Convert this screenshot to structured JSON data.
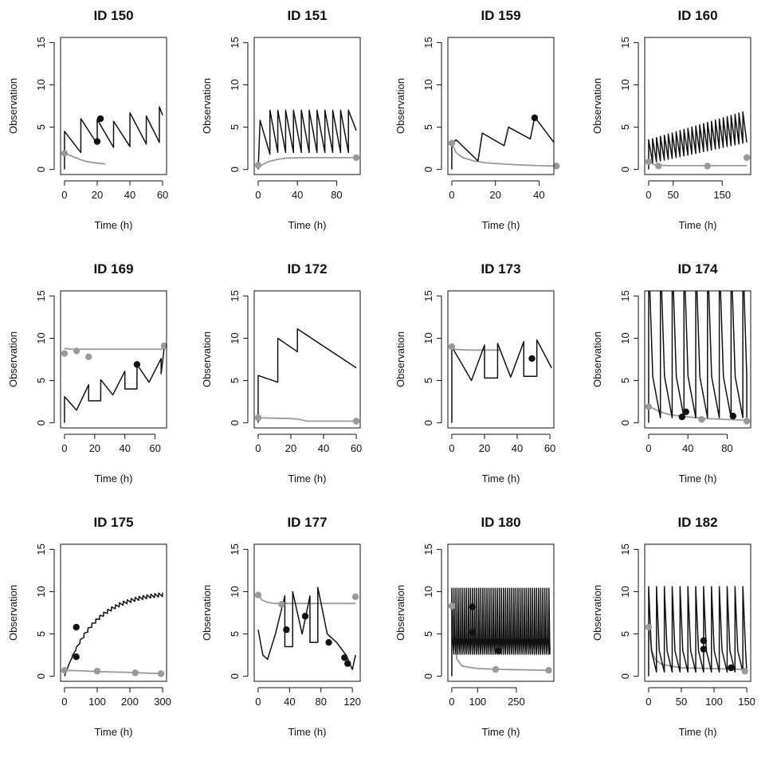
{
  "chart_data": [
    {
      "type": "line",
      "title": "ID 150",
      "xlabel": "Time (h)",
      "ylabel": "Observation",
      "xlim": [
        0,
        60
      ],
      "ylim": [
        0,
        15
      ],
      "xticks": [
        0,
        20,
        40,
        60
      ],
      "yticks": [
        0,
        5,
        10,
        15
      ],
      "series": [
        {
          "style": "predicted",
          "color": "#111111",
          "x": [
            0,
            0.01,
            10,
            10.01,
            20,
            20.01,
            30,
            30.01,
            40,
            40.01,
            50,
            50.01,
            58,
            58.01,
            60
          ],
          "y": [
            0,
            4.5,
            2,
            6,
            3,
            5.9,
            2.6,
            5.7,
            2.7,
            6.7,
            3,
            6.3,
            3.2,
            7.4,
            6.4
          ]
        },
        {
          "style": "population",
          "color": "#999999",
          "x": [
            0,
            4,
            8,
            12,
            16,
            20,
            25
          ],
          "y": [
            2,
            1.6,
            1.3,
            1.0,
            0.85,
            0.75,
            0.65
          ]
        }
      ],
      "points": [
        {
          "x": 0,
          "y": 1.9,
          "color": "#999999"
        },
        {
          "x": 20,
          "y": 3.3,
          "color": "#111111"
        },
        {
          "x": 22,
          "y": 6.0,
          "color": "#111111"
        }
      ]
    },
    {
      "type": "line",
      "title": "ID 151",
      "xlabel": "Time (h)",
      "ylabel": "Observation",
      "xlim": [
        0,
        100
      ],
      "ylim": [
        0,
        15
      ],
      "xticks": [
        0,
        40,
        80
      ],
      "yticks": [
        0,
        5,
        10,
        15
      ],
      "series": [
        {
          "style": "predicted",
          "color": "#111111",
          "x": [
            0,
            2,
            2.01,
            12,
            12.01,
            20,
            20.01,
            28,
            28.01,
            36,
            36.01,
            44,
            44.01,
            52,
            52.01,
            60,
            60.01,
            68,
            68.01,
            76,
            76.01,
            84,
            84.01,
            92,
            92.01,
            100
          ],
          "y": [
            0,
            5.8,
            5.8,
            1.8,
            7,
            2,
            7,
            2,
            7,
            2,
            7,
            2,
            7,
            2,
            7,
            2,
            7,
            2,
            7,
            2,
            7,
            2,
            7,
            2,
            7,
            4.6
          ]
        },
        {
          "style": "population",
          "color": "#999999",
          "x": [
            0,
            5,
            10,
            20,
            30,
            50,
            70,
            100
          ],
          "y": [
            0.3,
            0.6,
            0.9,
            1.2,
            1.35,
            1.4,
            1.4,
            1.4
          ]
        }
      ],
      "points": [
        {
          "x": 0,
          "y": 0.5,
          "color": "#999999"
        },
        {
          "x": 100,
          "y": 1.4,
          "color": "#999999"
        }
      ]
    },
    {
      "type": "line",
      "title": "ID 159",
      "xlabel": "Time (h)",
      "ylabel": "Observation",
      "xlim": [
        0,
        45
      ],
      "ylim": [
        0,
        15
      ],
      "xticks": [
        0,
        20,
        40
      ],
      "yticks": [
        0,
        5,
        10,
        15
      ],
      "series": [
        {
          "style": "predicted",
          "color": "#111111",
          "x": [
            0,
            0.01,
            2,
            12,
            12.01,
            14,
            24,
            24.01,
            26,
            36,
            36.01,
            38,
            48
          ],
          "y": [
            0,
            3,
            3.5,
            1,
            1,
            4.3,
            2.8,
            2.8,
            5,
            3.6,
            3.6,
            6.2,
            2.8
          ]
        },
        {
          "style": "population",
          "color": "#999999",
          "x": [
            0,
            2,
            5,
            10,
            15,
            20,
            30,
            40,
            48
          ],
          "y": [
            3.1,
            2,
            1.4,
            1,
            0.8,
            0.7,
            0.55,
            0.45,
            0.4
          ]
        }
      ],
      "points": [
        {
          "x": 0,
          "y": 3.1,
          "color": "#999999"
        },
        {
          "x": 38,
          "y": 6.1,
          "color": "#111111"
        },
        {
          "x": 48,
          "y": 0.4,
          "color": "#999999"
        }
      ]
    },
    {
      "type": "line",
      "title": "ID 160",
      "xlabel": "Time (h)",
      "ylabel": "Observation",
      "xlim": [
        0,
        200
      ],
      "ylim": [
        0,
        15
      ],
      "xticks": [
        0,
        50,
        150
      ],
      "yticks": [
        0,
        5,
        10,
        15
      ],
      "sawtooth": {
        "start": 0,
        "end": 200,
        "period": 8,
        "peak_start": 3.5,
        "peak_end": 6.8,
        "trough_start": 0.8,
        "trough_end": 3.2,
        "color": "#111111"
      },
      "series": [
        {
          "style": "population",
          "color": "#999999",
          "x": [
            0,
            10,
            20,
            40,
            80,
            120,
            200
          ],
          "y": [
            1,
            0.6,
            0.5,
            0.45,
            0.45,
            0.45,
            0.45
          ]
        }
      ],
      "points": [
        {
          "x": 0,
          "y": 0.9,
          "color": "#999999"
        },
        {
          "x": 20,
          "y": 0.4,
          "color": "#999999"
        },
        {
          "x": 120,
          "y": 0.4,
          "color": "#999999"
        },
        {
          "x": 200,
          "y": 1.4,
          "color": "#999999"
        }
      ]
    },
    {
      "type": "line",
      "title": "ID 169",
      "xlabel": "Time (h)",
      "ylabel": "Observation",
      "xlim": [
        0,
        65
      ],
      "ylim": [
        0,
        15
      ],
      "xticks": [
        0,
        20,
        40,
        60
      ],
      "yticks": [
        0,
        5,
        10,
        15
      ],
      "series": [
        {
          "style": "predicted",
          "color": "#111111",
          "x": [
            0,
            0.01,
            8,
            8.01,
            16,
            16.01,
            24,
            24.01,
            32,
            32.01,
            40,
            40.01,
            48,
            48.01,
            56,
            56.01,
            64,
            64.01,
            66
          ],
          "y": [
            0,
            3.1,
            1.5,
            1.5,
            4.5,
            2.6,
            2.6,
            5.1,
            3.3,
            3.3,
            6.1,
            4,
            4,
            6.9,
            4.8,
            4.8,
            7.6,
            5.8,
            8.8
          ]
        },
        {
          "style": "population",
          "color": "#999999",
          "x": [
            0,
            5,
            10,
            20,
            40,
            60,
            66
          ],
          "y": [
            8.8,
            8.7,
            8.7,
            8.7,
            8.7,
            8.7,
            8.7
          ]
        }
      ],
      "points": [
        {
          "x": 0,
          "y": 8.2,
          "color": "#999999"
        },
        {
          "x": 8,
          "y": 8.5,
          "color": "#999999"
        },
        {
          "x": 16,
          "y": 7.8,
          "color": "#999999"
        },
        {
          "x": 48,
          "y": 6.9,
          "color": "#111111"
        },
        {
          "x": 66,
          "y": 9.1,
          "color": "#999999"
        }
      ]
    },
    {
      "type": "line",
      "title": "ID 172",
      "xlabel": "Time (h)",
      "ylabel": "Observation",
      "xlim": [
        0,
        60
      ],
      "ylim": [
        0,
        15
      ],
      "xticks": [
        0,
        20,
        40,
        60
      ],
      "yticks": [
        0,
        5,
        10,
        15
      ],
      "series": [
        {
          "style": "predicted",
          "color": "#111111",
          "x": [
            0,
            0.01,
            12,
            12.01,
            24,
            24.01,
            60
          ],
          "y": [
            0,
            5.6,
            4.8,
            10,
            8.4,
            11.1,
            6.5
          ]
        },
        {
          "style": "population",
          "color": "#999999",
          "x": [
            0,
            10,
            20,
            24,
            30,
            40,
            60
          ],
          "y": [
            0.6,
            0.55,
            0.5,
            0.45,
            0.2,
            0.2,
            0.2
          ]
        }
      ],
      "points": [
        {
          "x": 0,
          "y": 0.6,
          "color": "#999999"
        },
        {
          "x": 60,
          "y": 0.2,
          "color": "#999999"
        }
      ]
    },
    {
      "type": "line",
      "title": "ID 173",
      "xlabel": "Time (h)",
      "ylabel": "Observation",
      "xlim": [
        0,
        60
      ],
      "ylim": [
        0,
        15
      ],
      "xticks": [
        0,
        20,
        40,
        60
      ],
      "yticks": [
        0,
        5,
        10,
        15
      ],
      "series": [
        {
          "style": "predicted",
          "color": "#111111",
          "x": [
            0,
            0.01,
            12,
            12.01,
            20,
            20.01,
            28,
            28.01,
            36,
            36.01,
            44,
            44.01,
            52,
            52.01,
            61
          ],
          "y": [
            0,
            9,
            5,
            5,
            9.2,
            5.3,
            5.3,
            9.4,
            5.4,
            5.4,
            9.6,
            5.5,
            5.5,
            9.8,
            6.5
          ]
        },
        {
          "style": "population",
          "color": "#999999",
          "x": [
            0,
            10,
            20,
            30
          ],
          "y": [
            8.7,
            8.6,
            8.6,
            8.6
          ]
        }
      ],
      "points": [
        {
          "x": 0,
          "y": 9,
          "color": "#999999"
        },
        {
          "x": 49,
          "y": 7.6,
          "color": "#111111"
        }
      ]
    },
    {
      "type": "line",
      "title": "ID 174",
      "xlabel": "Time (h)",
      "ylabel": "Observation",
      "xlim": [
        0,
        100
      ],
      "ylim": [
        0,
        15
      ],
      "xticks": [
        0,
        40,
        80
      ],
      "yticks": [
        0,
        5,
        10,
        15
      ],
      "spikes": {
        "start": 0,
        "end": 100,
        "period": 12,
        "peak": 20,
        "trough": 0.6,
        "color": "#111111"
      },
      "series": [
        {
          "style": "population",
          "color": "#999999",
          "x": [
            0,
            10,
            20,
            40,
            60,
            80,
            100
          ],
          "y": [
            2,
            1.4,
            1,
            0.7,
            0.5,
            0.4,
            0.3
          ]
        }
      ],
      "points": [
        {
          "x": 0,
          "y": 1.9,
          "color": "#999999"
        },
        {
          "x": 34,
          "y": 0.7,
          "color": "#111111"
        },
        {
          "x": 38,
          "y": 1.3,
          "color": "#111111"
        },
        {
          "x": 54,
          "y": 0.4,
          "color": "#999999"
        },
        {
          "x": 86,
          "y": 0.8,
          "color": "#111111"
        },
        {
          "x": 100,
          "y": 0.2,
          "color": "#999999"
        }
      ]
    },
    {
      "type": "line",
      "title": "ID 175",
      "xlabel": "Time (h)",
      "ylabel": "Observation",
      "xlim": [
        0,
        300
      ],
      "ylim": [
        0,
        15
      ],
      "xticks": [
        0,
        100,
        200,
        300
      ],
      "yticks": [
        0,
        5,
        10,
        15
      ],
      "rise": {
        "start": 0,
        "end": 300,
        "plateau": 10,
        "rate": 0.011,
        "period": 12,
        "ripple": 0.5,
        "color": "#111111"
      },
      "series": [
        {
          "style": "population",
          "color": "#999999",
          "x": [
            0,
            50,
            100,
            200,
            300
          ],
          "y": [
            0.7,
            0.65,
            0.55,
            0.45,
            0.3
          ]
        }
      ],
      "points": [
        {
          "x": 0,
          "y": 0.7,
          "color": "#999999"
        },
        {
          "x": 36,
          "y": 5.8,
          "color": "#111111"
        },
        {
          "x": 36,
          "y": 2.3,
          "color": "#111111"
        },
        {
          "x": 100,
          "y": 0.6,
          "color": "#999999"
        },
        {
          "x": 216,
          "y": 0.4,
          "color": "#999999"
        },
        {
          "x": 295,
          "y": 0.3,
          "color": "#999999"
        }
      ]
    },
    {
      "type": "line",
      "title": "ID 177",
      "xlabel": "Time (h)",
      "ylabel": "Observation",
      "xlim": [
        0,
        125
      ],
      "ylim": [
        0,
        15
      ],
      "xticks": [
        0,
        40,
        80,
        120
      ],
      "yticks": [
        0,
        5,
        10,
        15
      ],
      "series": [
        {
          "style": "predicted",
          "color": "#111111",
          "x": [
            0,
            6,
            12,
            12.01,
            22,
            22.01,
            34,
            34.01,
            44,
            44.01,
            56,
            56.01,
            66,
            66.01,
            76,
            76.01,
            88,
            88.01,
            100,
            100.01,
            112,
            112.01,
            120,
            120.01,
            124
          ],
          "y": [
            5.5,
            2.5,
            2,
            2,
            5,
            5,
            9.5,
            3.5,
            3.5,
            10,
            5,
            5,
            9.5,
            4,
            4,
            10.5,
            5,
            5,
            4,
            4,
            2.5,
            2.5,
            0.8,
            0.8,
            2.5
          ]
        },
        {
          "style": "population",
          "color": "#999999",
          "x": [
            0,
            5,
            10,
            20,
            60,
            100,
            124
          ],
          "y": [
            9.6,
            9,
            8.8,
            8.6,
            8.6,
            8.6,
            8.6
          ]
        }
      ],
      "points": [
        {
          "x": 0,
          "y": 9.6,
          "color": "#999999"
        },
        {
          "x": 30,
          "y": 8.5,
          "color": "#999999"
        },
        {
          "x": 36,
          "y": 5.5,
          "color": "#111111"
        },
        {
          "x": 60,
          "y": 7.1,
          "color": "#111111"
        },
        {
          "x": 90,
          "y": 4,
          "color": "#111111"
        },
        {
          "x": 110,
          "y": 2.2,
          "color": "#111111"
        },
        {
          "x": 114,
          "y": 1.5,
          "color": "#111111"
        },
        {
          "x": 124,
          "y": 9.4,
          "color": "#999999"
        }
      ]
    },
    {
      "type": "line",
      "title": "ID 180",
      "xlabel": "Time (h)",
      "ylabel": "Observation",
      "xlim": [
        0,
        380
      ],
      "ylim": [
        0,
        15
      ],
      "xticks": [
        0,
        100,
        250
      ],
      "yticks": [
        0,
        5,
        10,
        15
      ],
      "spikes": {
        "start": 0,
        "end": 380,
        "period": 8,
        "peak": 10.4,
        "trough": 2.6,
        "color": "#111111"
      },
      "series": [
        {
          "style": "population",
          "color": "#999999",
          "x": [
            0,
            10,
            20,
            40,
            100,
            200,
            380
          ],
          "y": [
            8.2,
            5,
            2,
            1.2,
            0.9,
            0.8,
            0.7
          ]
        }
      ],
      "points": [
        {
          "x": 0,
          "y": 8.3,
          "color": "#999999"
        },
        {
          "x": 80,
          "y": 8.2,
          "color": "#111111"
        },
        {
          "x": 80,
          "y": 5.2,
          "color": "#111111"
        },
        {
          "x": 170,
          "y": 0.8,
          "color": "#999999"
        },
        {
          "x": 180,
          "y": 3.0,
          "color": "#111111"
        },
        {
          "x": 375,
          "y": 0.7,
          "color": "#999999"
        }
      ]
    },
    {
      "type": "line",
      "title": "ID 182",
      "xlabel": "Time (h)",
      "ylabel": "Observation",
      "xlim": [
        0,
        150
      ],
      "ylim": [
        0,
        15
      ],
      "xticks": [
        0,
        50,
        100,
        150
      ],
      "yticks": [
        0,
        5,
        10,
        15
      ],
      "spikes": {
        "start": 0,
        "end": 150,
        "period": 12,
        "peak": 10.6,
        "trough": 0.5,
        "color": "#111111"
      },
      "series": [
        {
          "style": "population",
          "color": "#999999",
          "x": [
            0,
            5,
            10,
            20,
            50,
            100,
            150
          ],
          "y": [
            5.8,
            3,
            2,
            1.4,
            1.0,
            0.9,
            0.8
          ]
        }
      ],
      "points": [
        {
          "x": 0,
          "y": 5.8,
          "color": "#999999"
        },
        {
          "x": 84,
          "y": 4.2,
          "color": "#111111"
        },
        {
          "x": 84,
          "y": 3.2,
          "color": "#111111"
        },
        {
          "x": 126,
          "y": 1.0,
          "color": "#111111"
        },
        {
          "x": 147,
          "y": 0.6,
          "color": "#999999"
        }
      ]
    }
  ]
}
